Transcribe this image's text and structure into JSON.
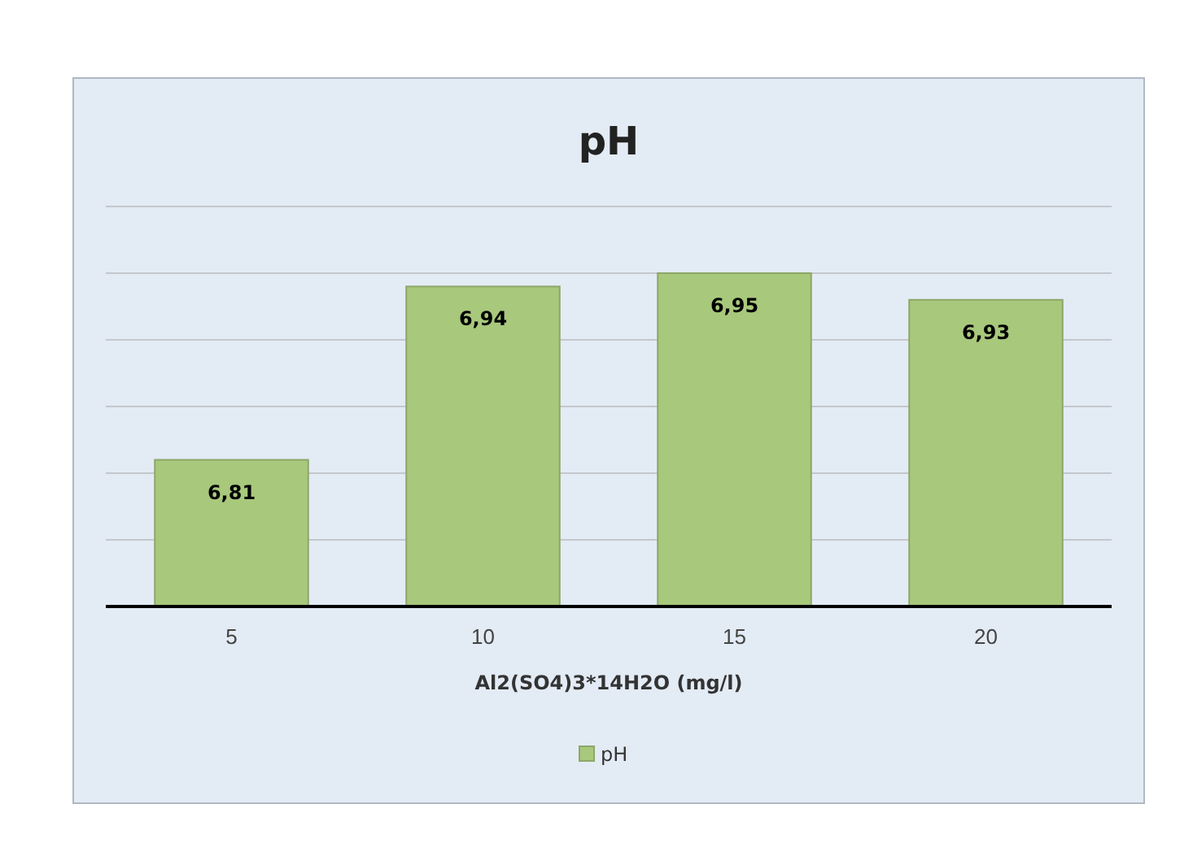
{
  "chart_data": {
    "type": "bar",
    "title": "pH",
    "xlabel": "Al2(SO4)3*14H2O (mg/l)",
    "categories": [
      "5",
      "10",
      "15",
      "20"
    ],
    "series": [
      {
        "name": "pH",
        "color": "#a8c87c",
        "values": [
          6.81,
          6.94,
          6.95,
          6.93
        ],
        "value_labels": [
          "6,81",
          "6,94",
          "6,95",
          "6,93"
        ]
      }
    ],
    "ylim": [
      6.7,
      7.0
    ],
    "yticks": [
      {
        "value": 6.7,
        "label": null
      },
      {
        "value": 6.75,
        "label": null
      },
      {
        "value": 6.8,
        "label": null
      },
      {
        "value": 6.85,
        "label": null
      },
      {
        "value": 6.9,
        "label": null
      },
      {
        "value": 6.95,
        "label": null
      },
      {
        "value": 7.0,
        "label": null
      }
    ],
    "tick_labels": "x",
    "grid": "y",
    "legend": "bottom"
  }
}
